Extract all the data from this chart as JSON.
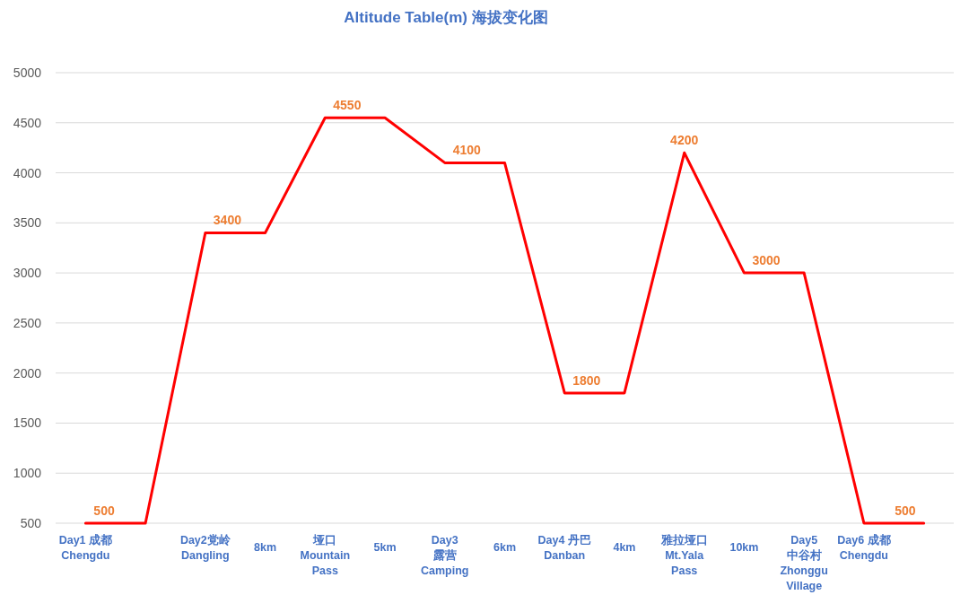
{
  "chart_data": {
    "type": "line",
    "title": "Altitude Table(m) 海拔变化图",
    "categories": [
      "Day1 成都\nChengdu",
      null,
      "Day2党岭\nDangling",
      "8km",
      "垭口\nMountain\nPass",
      "5km",
      "Day3\n露营\nCamping",
      "6km",
      "Day4 丹巴\nDanban",
      "4km",
      "雅拉垭口\nMt.Yala\nPass",
      "10km",
      "Day5\n中谷村\nZhonggu\nVillage",
      "Day6 成都\nChengdu",
      null
    ],
    "values": [
      500,
      500,
      3400,
      3400,
      4550,
      4550,
      4100,
      4100,
      1800,
      1800,
      4200,
      3000,
      3000,
      500,
      500
    ],
    "color": "#ff0000",
    "value_labels": [
      "500",
      null,
      "3400",
      null,
      "4550",
      null,
      "4100",
      null,
      "1800",
      null,
      "4200",
      "3000",
      null,
      null,
      "500"
    ],
    "ylim": [
      500,
      5000
    ],
    "yticks": [
      500,
      1000,
      1500,
      2000,
      2500,
      3000,
      3500,
      4000,
      4500,
      5000
    ],
    "grid": "y",
    "line_style": "solid"
  }
}
